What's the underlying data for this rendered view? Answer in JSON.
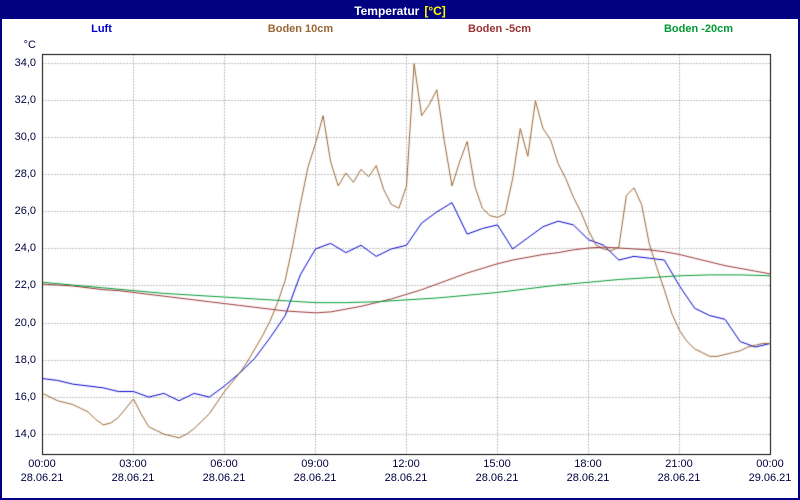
{
  "title": {
    "main": "Temperatur",
    "unit": "[°C]"
  },
  "axis": {
    "y_unit": "°C"
  },
  "legend": [
    {
      "label": "Luft",
      "color": "#0000cc"
    },
    {
      "label": "Boden 10cm",
      "color": "#996633"
    },
    {
      "label": "Boden -5cm",
      "color": "#993333"
    },
    {
      "label": "Boden -20cm",
      "color": "#009933"
    }
  ],
  "chart_data": {
    "type": "line",
    "title": "Temperatur [°C]",
    "xlabel": "",
    "ylabel": "°C",
    "grid": true,
    "grid_color": "#808080",
    "legend_position": "top",
    "xlim_hours": [
      0,
      24
    ],
    "x_tick_interval_hours": 3,
    "ylim": [
      12.9,
      34.5
    ],
    "x_axis": {
      "start": "28.06.21 00:00",
      "end": "29.06.21 00:00"
    },
    "x_ticks": [
      {
        "time": "00:00",
        "date": "28.06.21"
      },
      {
        "time": "03:00",
        "date": "28.06.21"
      },
      {
        "time": "06:00",
        "date": "28.06.21"
      },
      {
        "time": "09:00",
        "date": "28.06.21"
      },
      {
        "time": "12:00",
        "date": "28.06.21"
      },
      {
        "time": "15:00",
        "date": "28.06.21"
      },
      {
        "time": "18:00",
        "date": "28.06.21"
      },
      {
        "time": "21:00",
        "date": "28.06.21"
      },
      {
        "time": "00:00",
        "date": "29.06.21"
      }
    ],
    "y_ticks": [
      {
        "value": 34,
        "label": "34,0"
      },
      {
        "value": 32,
        "label": "32,0"
      },
      {
        "value": 30,
        "label": "30,0"
      },
      {
        "value": 28,
        "label": "28,0"
      },
      {
        "value": 26,
        "label": "26,0"
      },
      {
        "value": 24,
        "label": "24,0"
      },
      {
        "value": 22,
        "label": "22,0"
      },
      {
        "value": 20,
        "label": "20,0"
      },
      {
        "value": 18,
        "label": "18,0"
      },
      {
        "value": 16,
        "label": "16,0"
      },
      {
        "value": 14,
        "label": "14,0"
      }
    ],
    "series": [
      {
        "name": "Luft",
        "color": "#0000cc",
        "step_hours": 0.5,
        "values": [
          17.0,
          16.9,
          16.7,
          16.6,
          16.5,
          16.3,
          16.3,
          16.0,
          16.2,
          15.8,
          16.2,
          16.0,
          16.6,
          17.3,
          18.1,
          19.2,
          20.4,
          22.6,
          24.0,
          24.3,
          23.8,
          24.2,
          23.6,
          24.0,
          24.2,
          25.4,
          26.0,
          26.5,
          24.8,
          25.1,
          25.3,
          24.0,
          24.6,
          25.2,
          25.5,
          25.3,
          24.5,
          24.2,
          23.4,
          23.6,
          23.5,
          23.4,
          22.0,
          20.8,
          20.4,
          20.2,
          19.0,
          18.7,
          18.9
        ]
      },
      {
        "name": "Boden 10cm",
        "color": "#996633",
        "step_hours": 0.25,
        "values": [
          16.2,
          16.0,
          15.8,
          15.7,
          15.6,
          15.4,
          15.2,
          14.8,
          14.5,
          14.6,
          14.9,
          15.4,
          15.9,
          15.1,
          14.4,
          14.2,
          14.0,
          13.9,
          13.8,
          14.0,
          14.3,
          14.7,
          15.1,
          15.7,
          16.3,
          16.8,
          17.3,
          17.9,
          18.6,
          19.3,
          20.1,
          21.1,
          22.3,
          24.2,
          26.4,
          28.4,
          29.7,
          31.2,
          28.7,
          27.4,
          28.1,
          27.6,
          28.3,
          27.9,
          28.5,
          27.2,
          26.4,
          26.2,
          27.4,
          34.0,
          31.2,
          31.8,
          32.6,
          29.8,
          27.4,
          28.7,
          29.8,
          27.4,
          26.2,
          25.8,
          25.7,
          25.9,
          27.8,
          30.5,
          29.0,
          32.0,
          30.5,
          29.9,
          28.6,
          27.8,
          26.8,
          26.0,
          25.0,
          24.2,
          24.0,
          23.9,
          24.1,
          26.9,
          27.3,
          26.4,
          24.3,
          23.0,
          21.8,
          20.5,
          19.6,
          19.0,
          18.6,
          18.4,
          18.2,
          18.2,
          18.3,
          18.4,
          18.5,
          18.7,
          18.8,
          18.9,
          18.9
        ]
      },
      {
        "name": "Boden -5cm",
        "color": "#993333",
        "step_hours": 0.5,
        "values": [
          22.1,
          22.05,
          22.0,
          21.9,
          21.8,
          21.75,
          21.65,
          21.55,
          21.45,
          21.35,
          21.25,
          21.15,
          21.05,
          20.95,
          20.85,
          20.75,
          20.65,
          20.6,
          20.55,
          20.6,
          20.75,
          20.9,
          21.1,
          21.3,
          21.55,
          21.8,
          22.1,
          22.4,
          22.7,
          22.95,
          23.2,
          23.4,
          23.55,
          23.7,
          23.8,
          23.95,
          24.05,
          24.1,
          24.05,
          24.0,
          23.95,
          23.85,
          23.7,
          23.5,
          23.3,
          23.1,
          22.95,
          22.8,
          22.65
        ]
      },
      {
        "name": "Boden -20cm",
        "color": "#009933",
        "step_hours": 1,
        "values": [
          22.2,
          22.05,
          21.9,
          21.75,
          21.6,
          21.5,
          21.4,
          21.3,
          21.2,
          21.1,
          21.1,
          21.15,
          21.25,
          21.35,
          21.5,
          21.65,
          21.85,
          22.05,
          22.2,
          22.35,
          22.45,
          22.55,
          22.6,
          22.6,
          22.55
        ]
      }
    ]
  }
}
